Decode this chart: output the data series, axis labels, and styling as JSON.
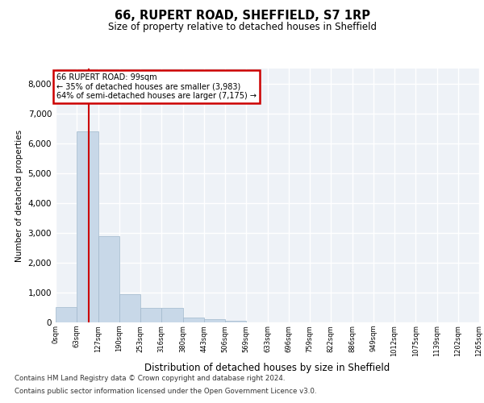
{
  "title1": "66, RUPERT ROAD, SHEFFIELD, S7 1RP",
  "title2": "Size of property relative to detached houses in Sheffield",
  "xlabel": "Distribution of detached houses by size in Sheffield",
  "ylabel": "Number of detached properties",
  "bin_edges": [
    0,
    63,
    127,
    190,
    253,
    316,
    380,
    443,
    506,
    569,
    633,
    696,
    759,
    822,
    886,
    949,
    1012,
    1075,
    1139,
    1202,
    1265
  ],
  "bin_labels": [
    "0sqm",
    "63sqm",
    "127sqm",
    "190sqm",
    "253sqm",
    "316sqm",
    "380sqm",
    "443sqm",
    "506sqm",
    "569sqm",
    "633sqm",
    "696sqm",
    "759sqm",
    "822sqm",
    "886sqm",
    "949sqm",
    "1012sqm",
    "1075sqm",
    "1139sqm",
    "1202sqm",
    "1265sqm"
  ],
  "counts": [
    500,
    6400,
    2900,
    950,
    480,
    480,
    150,
    100,
    50,
    0,
    0,
    0,
    0,
    0,
    0,
    0,
    0,
    0,
    0,
    0
  ],
  "bar_color": "#c8d8e8",
  "bar_edge_color": "#a0b8cc",
  "property_size": 99,
  "property_label": "66 RUPERT ROAD: 99sqm",
  "annotation_line1": "← 35% of detached houses are smaller (3,983)",
  "annotation_line2": "64% of semi-detached houses are larger (7,175) →",
  "vline_color": "#cc0000",
  "annotation_box_color": "#cc0000",
  "ylim": [
    0,
    8500
  ],
  "yticks": [
    0,
    1000,
    2000,
    3000,
    4000,
    5000,
    6000,
    7000,
    8000
  ],
  "background_color": "#eef2f7",
  "grid_color": "#ffffff",
  "footer1": "Contains HM Land Registry data © Crown copyright and database right 2024.",
  "footer2": "Contains public sector information licensed under the Open Government Licence v3.0."
}
